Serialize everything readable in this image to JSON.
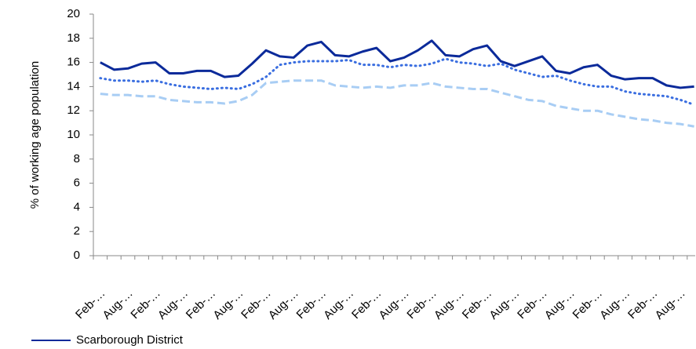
{
  "chart_data": {
    "type": "line",
    "y_label": "% of working age population",
    "categories": [
      "Feb-…",
      null,
      "Aug-…",
      null,
      "Feb-…",
      null,
      "Aug-…",
      null,
      "Feb-…",
      null,
      "Aug-…",
      null,
      "Feb-…",
      null,
      "Aug-…",
      null,
      "Feb-…",
      null,
      "Aug-…",
      null,
      "Feb-…",
      null,
      "Aug-…",
      null,
      "Feb-…",
      null,
      "Aug-…",
      null,
      "Feb-…",
      null,
      "Aug-…",
      null,
      "Feb-…",
      null,
      "Aug-…",
      null,
      "Feb-…",
      null,
      "Aug-…",
      null,
      "Feb-…",
      null,
      "Aug-…",
      null
    ],
    "series": [
      {
        "name": "Scarborough District",
        "color": "#0b2a9a",
        "line_style": "solid",
        "values": [
          16.0,
          15.4,
          15.5,
          15.9,
          16.0,
          15.1,
          15.1,
          15.3,
          15.3,
          14.8,
          14.9,
          15.9,
          17.0,
          16.5,
          16.4,
          17.4,
          17.7,
          16.6,
          16.5,
          16.9,
          17.2,
          16.1,
          16.4,
          17.0,
          17.8,
          16.6,
          16.5,
          17.1,
          17.4,
          16.1,
          15.7,
          16.1,
          16.5,
          15.3,
          15.1,
          15.6,
          15.8,
          14.9,
          14.6,
          14.7,
          14.7,
          14.1,
          13.9,
          14.0
        ]
      },
      {
        "color": "#3a6ee0",
        "line_style": "dotted",
        "values": [
          14.7,
          14.5,
          14.5,
          14.4,
          14.5,
          14.2,
          14.0,
          13.9,
          13.8,
          13.9,
          13.8,
          14.2,
          14.8,
          15.8,
          16.0,
          16.1,
          16.1,
          16.1,
          16.2,
          15.8,
          15.8,
          15.6,
          15.8,
          15.7,
          15.9,
          16.3,
          16.0,
          15.9,
          15.7,
          15.9,
          15.4,
          15.1,
          14.8,
          14.9,
          14.5,
          14.2,
          14.0,
          14.0,
          13.6,
          13.4,
          13.3,
          13.2,
          12.9,
          12.5
        ]
      },
      {
        "color": "#a8cdf4",
        "line_style": "dashed",
        "values": [
          13.4,
          13.3,
          13.3,
          13.2,
          13.2,
          12.9,
          12.8,
          12.7,
          12.7,
          12.6,
          12.8,
          13.3,
          14.3,
          14.4,
          14.5,
          14.5,
          14.5,
          14.1,
          14.0,
          13.9,
          14.0,
          13.9,
          14.1,
          14.1,
          14.3,
          14.0,
          13.9,
          13.8,
          13.8,
          13.5,
          13.2,
          12.9,
          12.8,
          12.4,
          12.2,
          12.0,
          12.0,
          11.7,
          11.5,
          11.3,
          11.2,
          11.0,
          10.9,
          10.7
        ]
      }
    ],
    "ylim": [
      0,
      20
    ],
    "yticks": [
      0,
      2,
      4,
      6,
      8,
      10,
      12,
      14,
      16,
      18,
      20
    ],
    "grid": false
  }
}
